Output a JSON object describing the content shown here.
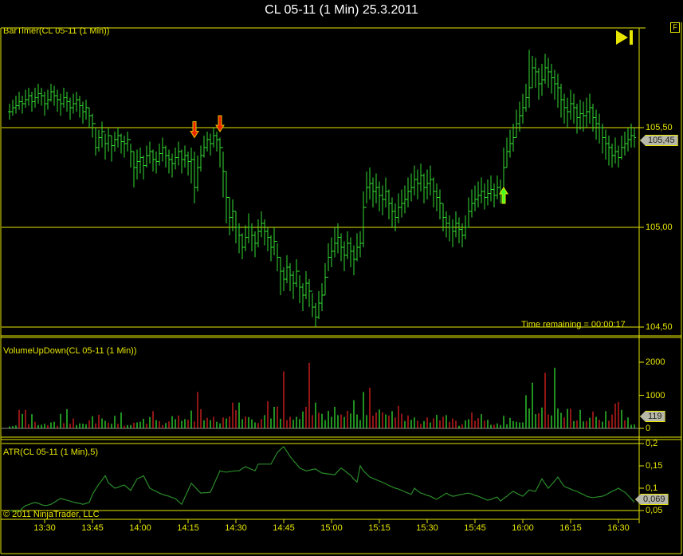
{
  "window": {
    "title": "CL 05-11 (1 Min)  25.3.2011"
  },
  "controls": {
    "float_button": "F"
  },
  "footer": {
    "copyright": "© 2011 NinjaTrader, LLC"
  },
  "colors": {
    "background": "#000000",
    "axis": "#e6e600",
    "bar": "#33dd33",
    "volume_up": "#33dd33",
    "volume_down": "#dd2222",
    "atr_line": "#2a8a2a",
    "signal_down": "#ee2200",
    "signal_up": "#44ff22"
  },
  "chart_data": {
    "type": "ohlc",
    "title": "CL 05-11 (1 Min)  25.3.2011",
    "first_bar_time": "13:19",
    "bar_interval_minutes": 1,
    "time_ticks": [
      "13:30",
      "13:45",
      "14:00",
      "14:15",
      "14:30",
      "14:45",
      "15:00",
      "15:15",
      "15:30",
      "15:45",
      "16:00",
      "16:15",
      "16:30"
    ],
    "price_panel": {
      "label": "BarTimer(CL 05-11 (1 Min))",
      "ticks": [
        {
          "value": 105.5,
          "label": "105,50"
        },
        {
          "value": 105.0,
          "label": "105,00"
        },
        {
          "value": 104.5,
          "label": "104,50"
        }
      ],
      "last_price_label": "105,45",
      "time_remaining": "Time remaining = 00:00:17",
      "close": [
        105.58,
        105.6,
        105.61,
        105.63,
        105.62,
        105.64,
        105.66,
        105.63,
        105.65,
        105.67,
        105.66,
        105.62,
        105.64,
        105.68,
        105.66,
        105.64,
        105.62,
        105.65,
        105.63,
        105.6,
        105.62,
        105.64,
        105.61,
        105.58,
        105.6,
        105.56,
        105.52,
        105.4,
        105.45,
        105.48,
        105.42,
        105.46,
        105.41,
        105.44,
        105.46,
        105.43,
        105.42,
        105.44,
        105.38,
        105.3,
        105.33,
        105.35,
        105.31,
        105.36,
        105.38,
        105.34,
        105.33,
        105.37,
        105.4,
        105.36,
        105.34,
        105.32,
        105.35,
        105.38,
        105.34,
        105.36,
        105.33,
        105.34,
        105.2,
        105.3,
        105.36,
        105.4,
        105.44,
        105.42,
        105.46,
        105.44,
        105.4,
        105.28,
        105.15,
        105.05,
        105.08,
        105.0,
        104.96,
        104.9,
        104.95,
        105.0,
        104.96,
        104.92,
        104.98,
        105.02,
        104.98,
        104.95,
        104.9,
        104.93,
        104.85,
        104.78,
        104.74,
        104.8,
        104.76,
        104.72,
        104.78,
        104.7,
        104.66,
        104.72,
        104.68,
        104.6,
        104.55,
        104.62,
        104.66,
        104.75,
        104.85,
        104.88,
        104.92,
        104.95,
        104.9,
        104.86,
        104.92,
        104.88,
        104.84,
        104.9,
        104.92,
        105.1,
        105.2,
        105.22,
        105.18,
        105.2,
        105.16,
        105.14,
        105.18,
        105.12,
        105.08,
        105.05,
        105.1,
        105.12,
        105.14,
        105.18,
        105.2,
        105.24,
        105.22,
        105.26,
        105.2,
        105.22,
        105.24,
        105.18,
        105.15,
        105.12,
        105.05,
        105.02,
        105.0,
        104.98,
        105.02,
        104.99,
        104.96,
        105.0,
        105.08,
        105.12,
        105.14,
        105.16,
        105.18,
        105.15,
        105.17,
        105.19,
        105.16,
        105.2,
        105.18,
        105.3,
        105.38,
        105.42,
        105.45,
        105.52,
        105.56,
        105.6,
        105.65,
        105.7,
        105.8,
        105.78,
        105.72,
        105.74,
        105.8,
        105.78,
        105.75,
        105.72,
        105.7,
        105.64,
        105.6,
        105.58,
        105.62,
        105.6,
        105.55,
        105.57,
        105.56,
        105.58,
        105.6,
        105.55,
        105.52,
        105.5,
        105.45,
        105.42,
        105.4,
        105.36,
        105.38,
        105.35,
        105.4,
        105.42,
        105.44,
        105.46,
        105.45
      ],
      "high": [
        105.62,
        105.64,
        105.66,
        105.68,
        105.66,
        105.69,
        105.7,
        105.68,
        105.7,
        105.72,
        105.7,
        105.68,
        105.69,
        105.72,
        105.71,
        105.69,
        105.67,
        105.7,
        105.68,
        105.65,
        105.67,
        105.68,
        105.66,
        105.63,
        105.64,
        105.6,
        105.57,
        105.5,
        105.49,
        105.53,
        105.47,
        105.5,
        105.46,
        105.48,
        105.5,
        105.47,
        105.46,
        105.48,
        105.42,
        105.38,
        105.39,
        105.4,
        105.36,
        105.41,
        105.43,
        105.39,
        105.38,
        105.42,
        105.45,
        105.41,
        105.39,
        105.37,
        105.4,
        105.43,
        105.39,
        105.41,
        105.38,
        105.4,
        105.38,
        105.36,
        105.41,
        105.46,
        105.48,
        105.47,
        105.5,
        105.48,
        105.45,
        105.38,
        105.28,
        105.15,
        105.14,
        105.08,
        105.02,
        104.97,
        105.01,
        105.07,
        105.02,
        104.98,
        105.04,
        105.08,
        105.04,
        105.0,
        104.96,
        105.0,
        104.92,
        104.85,
        104.8,
        104.86,
        104.82,
        104.78,
        104.84,
        104.76,
        104.72,
        104.78,
        104.74,
        104.67,
        104.62,
        104.68,
        104.72,
        104.82,
        104.92,
        104.95,
        105.0,
        105.02,
        104.97,
        104.93,
        104.98,
        104.95,
        104.91,
        104.97,
        104.98,
        105.18,
        105.28,
        105.3,
        105.25,
        105.27,
        105.23,
        105.21,
        105.25,
        105.19,
        105.15,
        105.12,
        105.17,
        105.19,
        105.21,
        105.25,
        105.27,
        105.31,
        105.29,
        105.32,
        105.27,
        105.29,
        105.31,
        105.25,
        105.22,
        105.19,
        105.12,
        105.08,
        105.06,
        105.04,
        105.08,
        105.05,
        105.02,
        105.06,
        105.15,
        105.19,
        105.21,
        105.23,
        105.25,
        105.22,
        105.24,
        105.26,
        105.22,
        105.26,
        105.24,
        105.4,
        105.45,
        105.49,
        105.52,
        105.59,
        105.63,
        105.67,
        105.72,
        105.89,
        105.86,
        105.85,
        105.8,
        105.82,
        105.87,
        105.85,
        105.82,
        105.79,
        105.77,
        105.72,
        105.67,
        105.65,
        105.69,
        105.67,
        105.62,
        105.64,
        105.63,
        105.65,
        105.67,
        105.62,
        105.59,
        105.57,
        105.52,
        105.49,
        105.46,
        105.42,
        105.45,
        105.41,
        105.46,
        105.48,
        105.5,
        105.52,
        105.5
      ],
      "low": [
        105.54,
        105.56,
        105.57,
        105.59,
        105.57,
        105.6,
        105.61,
        105.58,
        105.6,
        105.62,
        105.61,
        105.56,
        105.59,
        105.63,
        105.61,
        105.58,
        105.56,
        105.6,
        105.58,
        105.54,
        105.57,
        105.58,
        105.55,
        105.52,
        105.54,
        105.5,
        105.45,
        105.36,
        105.38,
        105.4,
        105.34,
        105.38,
        105.33,
        105.38,
        105.4,
        105.37,
        105.35,
        105.38,
        105.3,
        105.2,
        105.24,
        105.27,
        105.24,
        105.3,
        105.32,
        105.28,
        105.27,
        105.31,
        105.33,
        105.3,
        105.27,
        105.25,
        105.29,
        105.31,
        105.27,
        105.3,
        105.26,
        105.22,
        105.12,
        105.18,
        105.28,
        105.35,
        105.38,
        105.36,
        105.4,
        105.38,
        105.3,
        105.15,
        105.02,
        104.96,
        104.98,
        104.92,
        104.87,
        104.84,
        104.88,
        104.92,
        104.88,
        104.85,
        104.9,
        104.95,
        104.91,
        104.88,
        104.83,
        104.86,
        104.78,
        104.66,
        104.68,
        104.72,
        104.68,
        104.64,
        104.7,
        104.62,
        104.58,
        104.64,
        104.6,
        104.55,
        104.5,
        104.54,
        104.58,
        104.66,
        104.78,
        104.8,
        104.85,
        104.87,
        104.83,
        104.78,
        104.84,
        104.8,
        104.76,
        104.83,
        104.85,
        104.9,
        105.12,
        105.14,
        105.1,
        105.12,
        105.08,
        105.06,
        105.1,
        105.04,
        105.0,
        104.98,
        105.02,
        105.05,
        105.07,
        105.1,
        105.13,
        105.16,
        105.14,
        105.18,
        105.12,
        105.14,
        105.16,
        105.1,
        105.08,
        105.04,
        104.98,
        104.95,
        104.93,
        104.9,
        104.95,
        104.92,
        104.9,
        104.94,
        105.0,
        105.05,
        105.08,
        105.1,
        105.12,
        105.09,
        105.11,
        105.13,
        105.1,
        105.14,
        105.12,
        105.18,
        105.3,
        105.35,
        105.38,
        105.45,
        105.48,
        105.52,
        105.58,
        105.6,
        105.7,
        105.7,
        105.64,
        105.66,
        105.72,
        105.7,
        105.67,
        105.64,
        105.6,
        105.55,
        105.52,
        105.5,
        105.54,
        105.52,
        105.47,
        105.49,
        105.48,
        105.5,
        105.52,
        105.48,
        105.44,
        105.42,
        105.37,
        105.34,
        105.31,
        105.3,
        105.32,
        105.3,
        105.34,
        105.36,
        105.38,
        105.4,
        105.4
      ],
      "markers": [
        {
          "type": "down-arrow",
          "time": "14:17",
          "price": 105.45
        },
        {
          "type": "down-arrow",
          "time": "14:25",
          "price": 105.48
        },
        {
          "type": "up-arrow",
          "time": "15:54",
          "price": 105.2
        }
      ]
    },
    "volume_panel": {
      "label": "VolumeUpDown(CL 05-11 (1 Min))",
      "ticks": [
        {
          "value": 2000,
          "label": "2000"
        },
        {
          "value": 1000,
          "label": "1000"
        },
        {
          "value": 0,
          "label": "0"
        }
      ],
      "last_value_label": "119",
      "values": [
        60,
        70,
        90,
        560,
        440,
        560,
        130,
        430,
        200,
        100,
        110,
        140,
        100,
        180,
        200,
        80,
        440,
        160,
        580,
        140,
        300,
        100,
        150,
        140,
        120,
        240,
        370,
        150,
        410,
        300,
        230,
        170,
        140,
        380,
        140,
        480,
        80,
        100,
        100,
        170,
        180,
        200,
        290,
        140,
        340,
        520,
        250,
        220,
        100,
        160,
        210,
        370,
        280,
        390,
        230,
        280,
        260,
        540,
        210,
        1100,
        580,
        240,
        320,
        250,
        350,
        200,
        150,
        330,
        300,
        360,
        780,
        550,
        780,
        280,
        360,
        340,
        270,
        180,
        160,
        280,
        400,
        820,
        300,
        650,
        660,
        290,
        1720,
        250,
        350,
        260,
        350,
        280,
        510,
        650,
        1980,
        400,
        780,
        470,
        440,
        250,
        530,
        350,
        650,
        400,
        420,
        340,
        530,
        450,
        850,
        420,
        250,
        1100,
        400,
        1230,
        380,
        480,
        570,
        490,
        420,
        390,
        520,
        330,
        680,
        440,
        220,
        390,
        260,
        330,
        230,
        140,
        220,
        330,
        180,
        300,
        410,
        240,
        350,
        400,
        200,
        300,
        230,
        80,
        120,
        240,
        280,
        480,
        230,
        310,
        430,
        230,
        260,
        110,
        110,
        150,
        100,
        380,
        120,
        320,
        220,
        200,
        180,
        180,
        1000,
        600,
        1380,
        430,
        460,
        630,
        1680,
        420,
        390,
        1830,
        600,
        470,
        330,
        590,
        590,
        220,
        240,
        560,
        210,
        220,
        320,
        510,
        350,
        260,
        200,
        520,
        230,
        420,
        750,
        800,
        560,
        240,
        330,
        110,
        119
      ],
      "direction": "UUUDUDDUDUUUDUUDUDUDDUUUUDUDDUUDUUDUDUUDUUUDUDUDDUDUUDUUDUDDDUDUDUUDUDDDUUDUUUDDUDUUDUDDDUUUUDDDUDUUUUUUDUDUUUUUUDDDUDUDUDDDUDUUDDUDUDUDDUDDDUDUUDDDUDUUDUUUUUUUUUUUUUDUDDUUUUDUDUDUUDUDUDUUDDDDUDUUUD"
    },
    "atr_panel": {
      "label": "ATR(CL 05-11 (1 Min),5)",
      "ticks": [
        {
          "value": 0.2,
          "label": "0,2"
        },
        {
          "value": 0.15,
          "label": "0,15"
        },
        {
          "value": 0.1,
          "label": "0,1"
        },
        {
          "value": 0.05,
          "label": "0,05"
        }
      ],
      "last_value_label": "0,069",
      "values": [
        0.05,
        0.049,
        0.049,
        0.048,
        0.055,
        0.061,
        0.063,
        0.066,
        0.068,
        0.066,
        0.063,
        0.061,
        0.062,
        0.064,
        0.068,
        0.073,
        0.077,
        0.075,
        0.073,
        0.071,
        0.069,
        0.067,
        0.066,
        0.064,
        0.066,
        0.068,
        0.086,
        0.098,
        0.109,
        0.118,
        0.128,
        0.112,
        0.106,
        0.1,
        0.102,
        0.105,
        0.107,
        0.101,
        0.095,
        0.108,
        0.121,
        0.124,
        0.128,
        0.114,
        0.1,
        0.096,
        0.093,
        0.089,
        0.086,
        0.084,
        0.082,
        0.079,
        0.077,
        0.07,
        0.064,
        0.08,
        0.095,
        0.111,
        0.104,
        0.096,
        0.089,
        0.09,
        0.09,
        0.091,
        0.107,
        0.123,
        0.139,
        0.137,
        0.136,
        0.137,
        0.138,
        0.139,
        0.139,
        0.144,
        0.148,
        0.145,
        0.142,
        0.139,
        0.154,
        0.154,
        0.154,
        0.154,
        0.154,
        0.167,
        0.18,
        0.187,
        0.193,
        0.182,
        0.171,
        0.162,
        0.154,
        0.145,
        0.142,
        0.139,
        0.14,
        0.142,
        0.143,
        0.138,
        0.134,
        0.133,
        0.132,
        0.131,
        0.13,
        0.138,
        0.145,
        0.14,
        0.134,
        0.129,
        0.12,
        0.114,
        0.15,
        0.139,
        0.132,
        0.125,
        0.122,
        0.119,
        0.116,
        0.113,
        0.11,
        0.106,
        0.103,
        0.1,
        0.098,
        0.095,
        0.092,
        0.089,
        0.086,
        0.1,
        0.094,
        0.089,
        0.087,
        0.084,
        0.082,
        0.078,
        0.075,
        0.08,
        0.084,
        0.089,
        0.085,
        0.082,
        0.083,
        0.085,
        0.086,
        0.088,
        0.089,
        0.087,
        0.084,
        0.082,
        0.079,
        0.076,
        0.073,
        0.075,
        0.078,
        0.08,
        0.071,
        0.077,
        0.082,
        0.088,
        0.093,
        0.089,
        0.085,
        0.082,
        0.089,
        0.096,
        0.094,
        0.093,
        0.107,
        0.121,
        0.11,
        0.1,
        0.108,
        0.116,
        0.125,
        0.114,
        0.104,
        0.101,
        0.098,
        0.095,
        0.093,
        0.089,
        0.086,
        0.082,
        0.08,
        0.079,
        0.08,
        0.081,
        0.082,
        0.085,
        0.089,
        0.093,
        0.096,
        0.1,
        0.095,
        0.091,
        0.084,
        0.076,
        0.069
      ]
    }
  }
}
